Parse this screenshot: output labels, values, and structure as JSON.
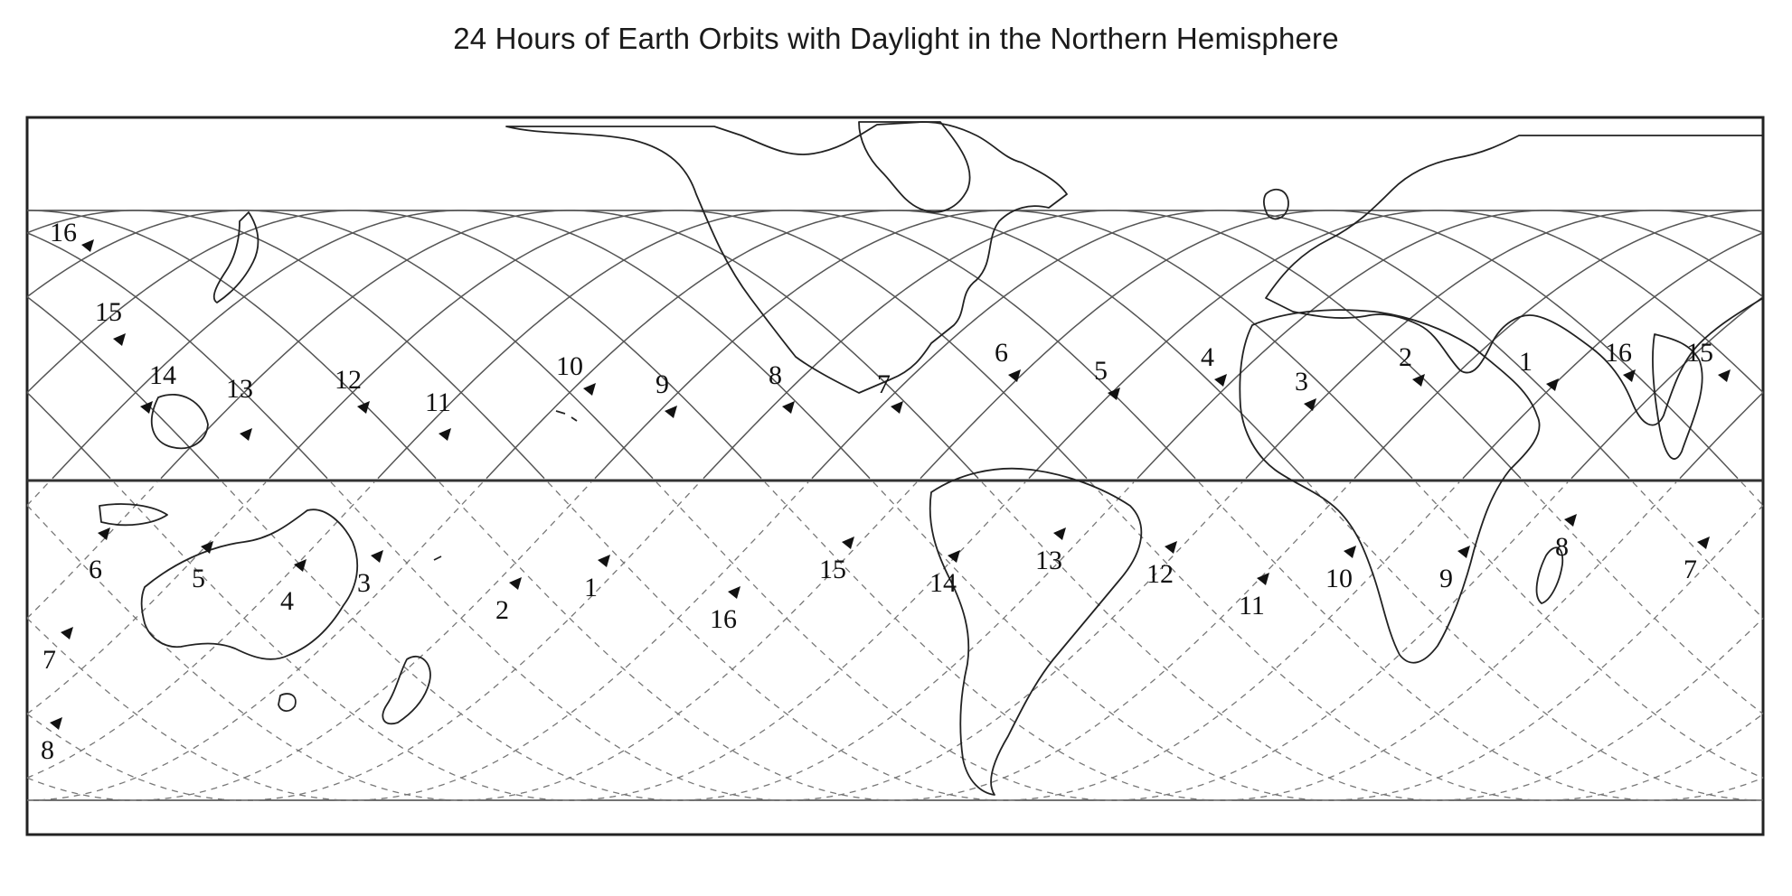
{
  "title": "24 Hours of Earth Orbits with Daylight in the Northern Hemisphere",
  "orbit_labels_north": [
    "16",
    "15",
    "14",
    "13",
    "12",
    "11",
    "10",
    "9",
    "8",
    "7",
    "6",
    "5",
    "4",
    "3",
    "2",
    "1",
    "16",
    "15"
  ],
  "orbit_labels_south": [
    "6",
    "5",
    "4",
    "3",
    "2",
    "1",
    "16",
    "15",
    "14",
    "13",
    "12",
    "11",
    "10",
    "9",
    "8",
    "7",
    "7",
    "8"
  ],
  "legend_colors": {
    "day_track": "#555555",
    "night_track": "#777777",
    "land": "#222222"
  }
}
